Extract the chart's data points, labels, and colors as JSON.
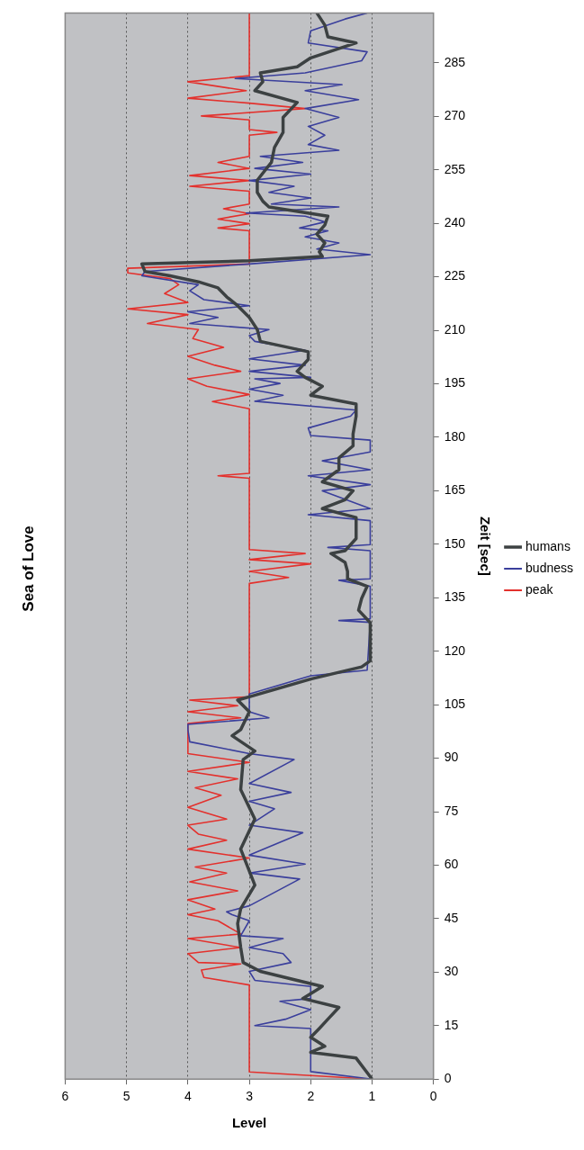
{
  "chart_data": {
    "type": "line",
    "orientation": "horizontal",
    "title": "Sea of Love",
    "ylabel": "Zeit [sec]",
    "xlabel": "Level",
    "ylim": [
      0,
      299
    ],
    "yticks": [
      0,
      15,
      30,
      45,
      60,
      75,
      90,
      105,
      120,
      135,
      150,
      165,
      180,
      195,
      210,
      225,
      240,
      255,
      270,
      285
    ],
    "xlim": [
      6,
      0
    ],
    "xticks": [
      0,
      1,
      2,
      3,
      4,
      5,
      6
    ],
    "grid": "x",
    "legend": "right",
    "series": [
      {
        "name": "humans",
        "color": "#3c4142",
        "x": [
          0,
          5.9,
          7.5,
          9.2,
          11.7,
          14.2,
          16.8,
          20.1,
          22.6,
          26,
          27.7,
          30.2,
          32.7,
          36.9,
          43.6,
          47.8,
          54.4,
          64.5,
          72.9,
          81.2,
          89.6,
          92,
          96.3,
          98,
          103,
          106.3,
          107.2,
          112.2,
          115.6,
          117.3,
          128,
          131.5,
          134.8,
          138.2,
          140.3,
          142.4,
          144.9,
          147.4,
          148.2,
          151.6,
          157.5,
          160,
          162.5,
          165,
          167.5,
          170.9,
          174.2,
          177.6,
          180.9,
          185.9,
          189.3,
          191.8,
          194.3,
          196.8,
          198.5,
          201.8,
          204,
          206.9,
          210.2,
          213.6,
          216.9,
          219.4,
          221.9,
          223.6,
          225.3,
          226.5,
          228.6,
          229.5,
          230.7,
          232,
          234.5,
          237,
          239.5,
          242,
          244.6,
          246.2,
          248.7,
          252.1,
          257.1,
          261.3,
          265.5,
          269.7,
          273.9,
          277.2,
          279.7,
          282.2,
          283.9,
          286.4,
          290.6,
          292.3,
          295.6,
          299
        ],
        "values": [
          1,
          1.26,
          2.0,
          1.77,
          2.0,
          1.86,
          1.72,
          1.54,
          2.13,
          1.81,
          2.22,
          2.82,
          3.1,
          3.14,
          3.19,
          3.14,
          2.91,
          3.14,
          2.91,
          3.14,
          3.1,
          2.91,
          3.28,
          3.14,
          3.0,
          3.19,
          3.0,
          2.0,
          1.17,
          1.03,
          1.03,
          1.22,
          1.17,
          1.08,
          1.4,
          1.4,
          1.44,
          1.67,
          1.44,
          1.26,
          1.26,
          1.81,
          1.44,
          1.31,
          1.81,
          1.54,
          1.54,
          1.31,
          1.31,
          1.26,
          1.26,
          2.0,
          1.81,
          2.09,
          2.22,
          2.04,
          2.04,
          2.82,
          2.87,
          3.0,
          3.19,
          3.37,
          3.51,
          3.83,
          4.29,
          4.7,
          4.75,
          3.0,
          1.81,
          1.86,
          1.77,
          1.9,
          1.77,
          1.72,
          2.68,
          2.78,
          2.87,
          2.87,
          2.64,
          2.59,
          2.45,
          2.45,
          2.22,
          2.91,
          2.78,
          2.82,
          2.22,
          2.0,
          1.26,
          1.72,
          1.77,
          1.9
        ]
      },
      {
        "name": "budness",
        "color": "#3a3f9c",
        "x": [
          0,
          2.1,
          14.2,
          15,
          16.8,
          19.5,
          21.8,
          22.6,
          26,
          27.7,
          30.2,
          32.7,
          35.2,
          36.9,
          39.4,
          40.2,
          44.4,
          46.1,
          46.9,
          48.6,
          56.1,
          57.8,
          60.3,
          62.8,
          69.1,
          71.2,
          75.8,
          77.9,
          80.4,
          82.9,
          89.6,
          91.3,
          94.6,
          98,
          99.5,
          101.3,
          103,
          108,
          113.1,
          114.7,
          128.1,
          128.6,
          129.1,
          138.2,
          139.9,
          140.3,
          148.2,
          149.1,
          149.9,
          156.6,
          158.3,
          160,
          165,
          166.7,
          169.2,
          170.9,
          173.4,
          175.9,
          179.2,
          180.5,
          182.6,
          185.9,
          187.6,
          190.1,
          191.8,
          193.5,
          195.1,
          196.4,
          196.8,
          198.5,
          200.2,
          202,
          204.4,
          206.9,
          208.5,
          210.2,
          211.9,
          213.6,
          215.2,
          216.9,
          218.6,
          221.1,
          222.8,
          225.3,
          226.5,
          228.6,
          231.2,
          232.8,
          234.5,
          236.2,
          237.9,
          238.7,
          240.4,
          242,
          242.9,
          244.6,
          245.4,
          247.1,
          248.7,
          250.4,
          252,
          253.8,
          255.4,
          257.1,
          258.8,
          260.5,
          262.1,
          264.7,
          267.2,
          269.7,
          272.2,
          274.7,
          277.2,
          278.9,
          280.6,
          282.2,
          285.6,
          288.1,
          290.6,
          294,
          297.3,
          299
        ],
        "values": [
          1,
          2.0,
          2.0,
          2.91,
          2.41,
          2.0,
          2.5,
          2.0,
          2.0,
          2.91,
          3.0,
          2.32,
          2.45,
          3.0,
          2.45,
          3.14,
          3.0,
          3.28,
          3.37,
          3.0,
          2.18,
          3.0,
          2.09,
          3.0,
          2.13,
          3.0,
          2.59,
          3.0,
          2.32,
          3.0,
          2.27,
          3.0,
          3.97,
          4.0,
          4.0,
          2.68,
          3.0,
          3.0,
          2.0,
          1.08,
          1.03,
          1.54,
          1.03,
          1.03,
          1.54,
          1.03,
          1.03,
          1.72,
          1.03,
          1.03,
          2.04,
          1.03,
          1.81,
          1.03,
          2.04,
          1.03,
          1.81,
          1.03,
          1.03,
          2.0,
          2.04,
          1.35,
          1.26,
          2.91,
          2.45,
          3.0,
          2.5,
          2.91,
          2.0,
          3.0,
          2.09,
          3.0,
          2.09,
          2.91,
          3.0,
          2.68,
          3.97,
          3.51,
          4.0,
          3.0,
          3.74,
          3.97,
          3.83,
          4.75,
          4.7,
          3.0,
          1.03,
          1.9,
          1.54,
          2.09,
          1.72,
          2.18,
          1.77,
          2.09,
          3.05,
          1.54,
          2.64,
          2.0,
          2.68,
          2.27,
          3.0,
          2.0,
          2.91,
          2.13,
          2.82,
          1.54,
          2.04,
          1.77,
          2.04,
          1.54,
          2.09,
          1.22,
          2.09,
          1.49,
          3.23,
          2.09,
          1.17,
          1.08,
          2.04,
          2.0,
          1.44,
          1.08
        ]
      },
      {
        "name": "peak",
        "color": "#e3312d",
        "x": [
          0,
          2,
          26.4,
          28.5,
          30.6,
          32.3,
          32.7,
          35.2,
          36.9,
          39.4,
          40.7,
          44.4,
          46.1,
          47.7,
          50.3,
          52.8,
          55.3,
          57.8,
          59.5,
          62,
          64.5,
          67,
          68.7,
          71.2,
          72.9,
          76.2,
          79.6,
          81.7,
          84.2,
          86.3,
          88.8,
          91.3,
          99.7,
          101.3,
          103,
          104.7,
          106.3,
          107.2,
          139,
          140.7,
          142.4,
          144.5,
          145.7,
          147.4,
          148.5,
          168.5,
          169.2,
          169.9,
          188,
          190,
          192,
          194.3,
          196.4,
          198.5,
          200.2,
          202.7,
          205.2,
          207.7,
          210.2,
          211.9,
          214.4,
          216,
          217.8,
          220.3,
          222.8,
          224.5,
          226.1,
          227.4,
          228.6,
          237.9,
          238.7,
          239.9,
          241.2,
          242.7,
          244.1,
          245.4,
          249,
          250.4,
          252,
          253.4,
          255.4,
          257.1,
          258.8,
          264.7,
          265.5,
          266.3,
          269,
          270.1,
          272.2,
          273.7,
          275.1,
          277.2,
          279.7,
          281.4,
          299
        ],
        "values": [
          1,
          3,
          3,
          3.74,
          3.78,
          3.14,
          3.83,
          4.0,
          3.14,
          4.0,
          3.14,
          3.51,
          4.0,
          3.56,
          4.0,
          3.19,
          3.97,
          3.37,
          3.88,
          3.0,
          4.0,
          3.37,
          3.83,
          4.0,
          3.37,
          4.0,
          3.46,
          3.88,
          3.19,
          4.0,
          3.0,
          4.0,
          4.0,
          3.14,
          4.0,
          3.19,
          3.97,
          3.0,
          3.0,
          2.36,
          3.0,
          2.0,
          3.0,
          2.09,
          3.0,
          3.0,
          3.51,
          3.0,
          3.0,
          3.6,
          3.0,
          3.69,
          4.0,
          3.14,
          3.56,
          4.0,
          3.42,
          3.92,
          3.83,
          4.66,
          4.0,
          4.98,
          4.0,
          4.38,
          4.15,
          4.29,
          4.98,
          4.98,
          3.0,
          3.0,
          3.51,
          3.0,
          3.51,
          3.0,
          3.42,
          3.0,
          3.0,
          3.97,
          3.0,
          3.97,
          3.0,
          3.51,
          3.0,
          3.0,
          2.55,
          3.0,
          3.0,
          3.78,
          2.09,
          3.0,
          4.0,
          3.05,
          4.0,
          3.0,
          3.0
        ]
      }
    ]
  }
}
